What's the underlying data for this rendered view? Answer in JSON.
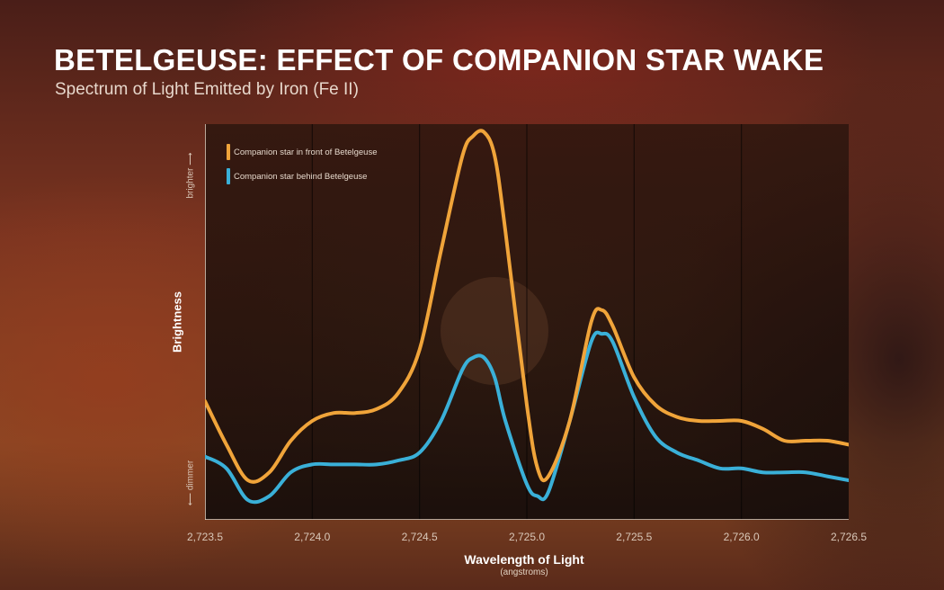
{
  "title": "BETELGEUSE: EFFECT OF COMPANION STAR WAKE",
  "subtitle": "Spectrum of Light Emitted by Iron (Fe II)",
  "chart_data": {
    "type": "line",
    "title": "BETELGEUSE: EFFECT OF COMPANION STAR WAKE",
    "subtitle": "Spectrum of Light Emitted by Iron (Fe II)",
    "xlabel": "Wavelength of Light",
    "xunit": "(angstroms)",
    "ylabel": "Brightness",
    "y_low_label": "dimmer",
    "y_high_label": "brighter",
    "xlim": [
      2723.5,
      2726.5
    ],
    "ylim": [
      0,
      1
    ],
    "x_ticks": [
      "2,723.5",
      "2,724.0",
      "2,724.5",
      "2,725.0",
      "2,725.5",
      "2,726.0",
      "2,726.5"
    ],
    "x_tick_values": [
      2723.5,
      2724.0,
      2724.5,
      2725.0,
      2725.5,
      2726.0,
      2726.5
    ],
    "grid": "vertical",
    "legend_position": "top-left",
    "x": [
      2723.5,
      2723.6,
      2723.7,
      2723.8,
      2723.9,
      2724.0,
      2724.1,
      2724.2,
      2724.3,
      2724.4,
      2724.5,
      2724.6,
      2724.7,
      2724.75,
      2724.8,
      2724.85,
      2724.9,
      2725.0,
      2725.05,
      2725.1,
      2725.2,
      2725.3,
      2725.35,
      2725.4,
      2725.5,
      2725.6,
      2725.7,
      2725.8,
      2725.9,
      2726.0,
      2726.1,
      2726.2,
      2726.3,
      2726.4,
      2726.5
    ],
    "series": [
      {
        "name": "Companion star in front of Betelgeuse",
        "color": "#f0a43a",
        "values": [
          0.3,
          0.19,
          0.1,
          0.12,
          0.2,
          0.25,
          0.27,
          0.27,
          0.28,
          0.32,
          0.43,
          0.68,
          0.92,
          0.97,
          0.98,
          0.92,
          0.73,
          0.29,
          0.13,
          0.11,
          0.25,
          0.5,
          0.53,
          0.49,
          0.36,
          0.29,
          0.26,
          0.25,
          0.25,
          0.25,
          0.23,
          0.2,
          0.2,
          0.2,
          0.19
        ]
      },
      {
        "name": "Companion star behind Betelgeuse",
        "color": "#3ab0d8",
        "values": [
          0.16,
          0.13,
          0.05,
          0.06,
          0.12,
          0.14,
          0.14,
          0.14,
          0.14,
          0.15,
          0.17,
          0.25,
          0.38,
          0.41,
          0.41,
          0.36,
          0.25,
          0.09,
          0.06,
          0.07,
          0.25,
          0.45,
          0.47,
          0.45,
          0.31,
          0.21,
          0.17,
          0.15,
          0.13,
          0.13,
          0.12,
          0.12,
          0.12,
          0.11,
          0.1
        ]
      }
    ]
  }
}
